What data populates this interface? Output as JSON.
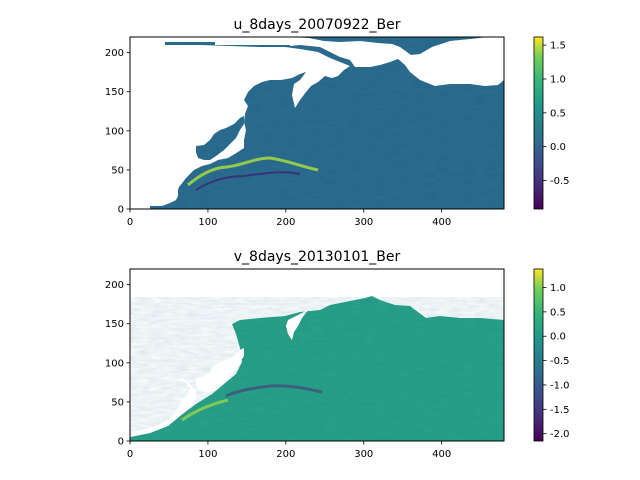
{
  "chart_data": [
    {
      "type": "heatmap",
      "title": "u_8days_20070922_Ber",
      "xlabel": "",
      "ylabel": "",
      "xlim": [
        0,
        480
      ],
      "ylim": [
        0,
        220
      ],
      "x_ticks": [
        "0",
        "100",
        "200",
        "300",
        "400"
      ],
      "y_ticks": [
        "0",
        "50",
        "100",
        "150",
        "200"
      ],
      "colormap": "viridis",
      "colorbar": {
        "range": [
          -0.92,
          1.62
        ],
        "ticks": [
          "-0.5",
          "0.0",
          "0.5",
          "1.0",
          "1.5"
        ],
        "tick_values": [
          -0.5,
          0.0,
          0.5,
          1.0,
          1.5
        ]
      },
      "background_value": 0.0,
      "land_color": "#ffffff"
    },
    {
      "type": "heatmap",
      "title": "v_8days_20130101_Ber",
      "xlabel": "",
      "ylabel": "",
      "xlim": [
        0,
        480
      ],
      "ylim": [
        0,
        220
      ],
      "x_ticks": [
        "0",
        "100",
        "200",
        "300",
        "400"
      ],
      "y_ticks": [
        "0",
        "50",
        "100",
        "150",
        "200"
      ],
      "colormap": "viridis",
      "colorbar": {
        "range": [
          -2.15,
          1.38
        ],
        "ticks": [
          "-2.0",
          "-1.5",
          "-1.0",
          "-0.5",
          "0.0",
          "0.5",
          "1.0"
        ],
        "tick_values": [
          -2.0,
          -1.5,
          -1.0,
          -0.5,
          0.0,
          0.5,
          1.0
        ]
      },
      "background_value": 0.0,
      "land_color": "#ffffff"
    }
  ]
}
